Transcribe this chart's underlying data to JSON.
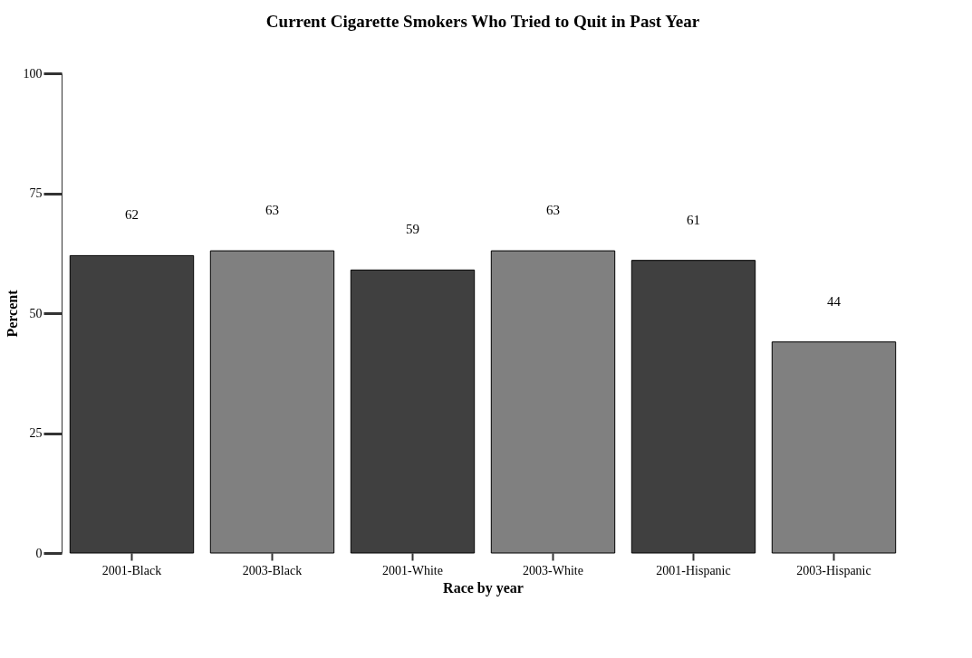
{
  "chart_data": {
    "type": "bar",
    "title": "Current Cigarette Smokers Who Tried to Quit in Past Year",
    "xlabel": "Race by year",
    "ylabel": "Percent",
    "categories": [
      "2001-Black",
      "2003-Black",
      "2001-White",
      "2003-White",
      "2001-Hispanic",
      "2003-Hispanic"
    ],
    "values": [
      62,
      63,
      59,
      63,
      61,
      44
    ],
    "colors": [
      "#404040",
      "#808080",
      "#404040",
      "#808080",
      "#404040",
      "#808080"
    ],
    "ylim": [
      0,
      100
    ],
    "yticks": [
      0,
      25,
      50,
      75,
      100
    ],
    "grid": false,
    "data_labels": true
  }
}
